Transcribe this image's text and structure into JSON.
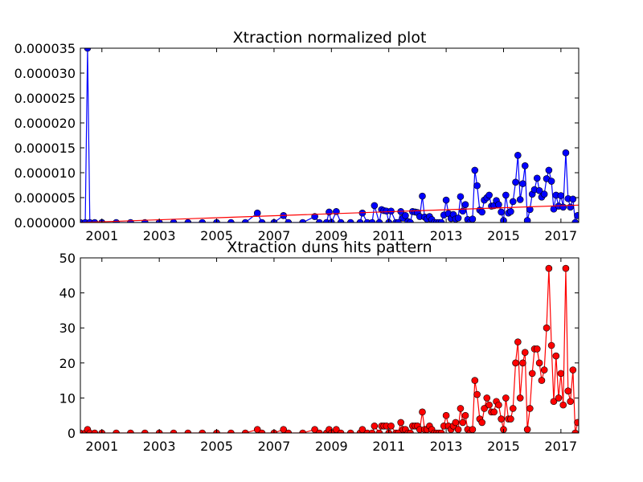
{
  "chart_data": [
    {
      "type": "line",
      "title": "Xtraction normalized plot",
      "xlabel": "",
      "ylabel": "",
      "xlim": [
        2000.25,
        2017.62
      ],
      "ylim": [
        0,
        3.5e-05
      ],
      "x_ticks": [
        2001,
        2003,
        2005,
        2007,
        2009,
        2011,
        2013,
        2015,
        2017
      ],
      "x_tick_labels": [
        "2001",
        "2003",
        "2005",
        "2007",
        "2009",
        "2011",
        "2013",
        "2015",
        "2017"
      ],
      "y_ticks": [
        0,
        5e-06,
        1e-05,
        1.5e-05,
        2e-05,
        2.5e-05,
        3e-05,
        3.5e-05
      ],
      "y_tick_labels": [
        "0.000000",
        "0.000005",
        "0.000010",
        "0.000015",
        "0.000020",
        "0.000025",
        "0.000030",
        "0.000035"
      ],
      "grid": false,
      "series": [
        {
          "style": "line-marker",
          "color": "#0000ff",
          "points": [
            [
              2000.25,
              0.0
            ],
            [
              2000.42,
              0.0
            ],
            [
              2000.5,
              3.5e-05
            ],
            [
              2000.58,
              0.0
            ],
            [
              2000.75,
              0.0
            ],
            [
              2001.0,
              0.0
            ],
            [
              2001.5,
              0.0
            ],
            [
              2002.0,
              0.0
            ],
            [
              2002.5,
              0.0
            ],
            [
              2003.0,
              0.0
            ],
            [
              2003.5,
              0.0
            ],
            [
              2004.0,
              0.0
            ],
            [
              2004.5,
              0.0
            ],
            [
              2005.0,
              0.0
            ],
            [
              2005.5,
              0.0
            ],
            [
              2006.0,
              0.0
            ],
            [
              2006.42,
              1.9e-06
            ],
            [
              2006.58,
              0.0
            ],
            [
              2007.0,
              0.0
            ],
            [
              2007.33,
              1.4e-06
            ],
            [
              2007.5,
              0.0
            ],
            [
              2008.0,
              0.0
            ],
            [
              2008.42,
              1.2e-06
            ],
            [
              2008.58,
              0.0
            ],
            [
              2008.83,
              0.0
            ],
            [
              2008.92,
              2.1e-06
            ],
            [
              2009.0,
              0.0
            ],
            [
              2009.17,
              2.2e-06
            ],
            [
              2009.33,
              0.0
            ],
            [
              2009.67,
              0.0
            ],
            [
              2010.0,
              0.0
            ],
            [
              2010.08,
              1.9e-06
            ],
            [
              2010.25,
              0.0
            ],
            [
              2010.42,
              0.0
            ],
            [
              2010.5,
              3.4e-06
            ],
            [
              2010.67,
              0.0
            ],
            [
              2010.75,
              2.6e-06
            ],
            [
              2010.83,
              2.4e-06
            ],
            [
              2010.92,
              2.3e-06
            ],
            [
              2011.0,
              0.0
            ],
            [
              2011.08,
              2.3e-06
            ],
            [
              2011.25,
              0.0
            ],
            [
              2011.33,
              0.0
            ],
            [
              2011.42,
              2.2e-06
            ],
            [
              2011.5,
              9e-07
            ],
            [
              2011.58,
              1.4e-06
            ],
            [
              2011.67,
              2e-07
            ],
            [
              2011.75,
              0.0
            ],
            [
              2011.83,
              2.2e-06
            ],
            [
              2011.92,
              2.1e-06
            ],
            [
              2012.0,
              2e-06
            ],
            [
              2012.08,
              1.2e-06
            ],
            [
              2012.17,
              5.3e-06
            ],
            [
              2012.25,
              1.1e-06
            ],
            [
              2012.33,
              7e-07
            ],
            [
              2012.42,
              1.2e-06
            ],
            [
              2012.5,
              6e-07
            ],
            [
              2012.58,
              0.0
            ],
            [
              2012.67,
              0.0
            ],
            [
              2012.75,
              0.0
            ],
            [
              2012.83,
              0.0
            ],
            [
              2012.92,
              1.5e-06
            ],
            [
              2013.0,
              4.5e-06
            ],
            [
              2013.08,
              1.8e-06
            ],
            [
              2013.17,
              8e-07
            ],
            [
              2013.25,
              1.6e-06
            ],
            [
              2013.33,
              7e-07
            ],
            [
              2013.42,
              9e-07
            ],
            [
              2013.5,
              5.2e-06
            ],
            [
              2013.58,
              2.3e-06
            ],
            [
              2013.67,
              3.6e-06
            ],
            [
              2013.75,
              6e-07
            ],
            [
              2013.83,
              0.0
            ],
            [
              2013.92,
              7e-07
            ],
            [
              2014.0,
              1.05e-05
            ],
            [
              2014.08,
              7.4e-06
            ],
            [
              2014.17,
              2.5e-06
            ],
            [
              2014.25,
              2.1e-06
            ],
            [
              2014.33,
              4.5e-06
            ],
            [
              2014.42,
              5e-06
            ],
            [
              2014.5,
              5.5e-06
            ],
            [
              2014.58,
              3.3e-06
            ],
            [
              2014.67,
              3.4e-06
            ],
            [
              2014.75,
              4.4e-06
            ],
            [
              2014.83,
              3.6e-06
            ],
            [
              2014.92,
              2.1e-06
            ],
            [
              2015.0,
              4e-07
            ],
            [
              2015.08,
              5.5e-06
            ],
            [
              2015.17,
              1.9e-06
            ],
            [
              2015.25,
              2.2e-06
            ],
            [
              2015.33,
              4.2e-06
            ],
            [
              2015.42,
              8.1e-06
            ],
            [
              2015.5,
              1.35e-05
            ],
            [
              2015.58,
              4.6e-06
            ],
            [
              2015.67,
              7.8e-06
            ],
            [
              2015.75,
              1.14e-05
            ],
            [
              2015.83,
              4e-07
            ],
            [
              2015.92,
              2.6e-06
            ],
            [
              2016.0,
              5.7e-06
            ],
            [
              2016.08,
              6.6e-06
            ],
            [
              2016.17,
              8.9e-06
            ],
            [
              2016.25,
              6.4e-06
            ],
            [
              2016.33,
              5.1e-06
            ],
            [
              2016.42,
              5.7e-06
            ],
            [
              2016.5,
              8.8e-06
            ],
            [
              2016.58,
              1.05e-05
            ],
            [
              2016.67,
              8.3e-06
            ],
            [
              2016.75,
              2.7e-06
            ],
            [
              2016.83,
              5.5e-06
            ],
            [
              2016.92,
              3.3e-06
            ],
            [
              2017.0,
              5.4e-06
            ],
            [
              2017.08,
              3.1e-06
            ],
            [
              2017.17,
              1.4e-05
            ],
            [
              2017.25,
              4.8e-06
            ],
            [
              2017.33,
              3.1e-06
            ],
            [
              2017.42,
              4.7e-06
            ],
            [
              2017.5,
              0.0
            ],
            [
              2017.58,
              1.4e-06
            ]
          ]
        },
        {
          "style": "line",
          "color": "#ff0000",
          "points": [
            [
              2000.25,
              0.0
            ],
            [
              2017.62,
              3.5e-06
            ]
          ]
        }
      ]
    },
    {
      "type": "line",
      "title": "Xtraction duns hits pattern",
      "xlabel": "",
      "ylabel": "",
      "xlim": [
        2000.25,
        2017.62
      ],
      "ylim": [
        0,
        50
      ],
      "x_ticks": [
        2001,
        2003,
        2005,
        2007,
        2009,
        2011,
        2013,
        2015,
        2017
      ],
      "x_tick_labels": [
        "2001",
        "2003",
        "2005",
        "2007",
        "2009",
        "2011",
        "2013",
        "2015",
        "2017"
      ],
      "y_ticks": [
        0,
        10,
        20,
        30,
        40,
        50
      ],
      "y_tick_labels": [
        "0",
        "10",
        "20",
        "30",
        "40",
        "50"
      ],
      "grid": false,
      "series": [
        {
          "style": "line-marker",
          "color": "#ff0000",
          "points": [
            [
              2000.25,
              0
            ],
            [
              2000.42,
              0
            ],
            [
              2000.5,
              1
            ],
            [
              2000.58,
              0
            ],
            [
              2000.75,
              0
            ],
            [
              2001.0,
              0
            ],
            [
              2001.5,
              0
            ],
            [
              2002.0,
              0
            ],
            [
              2002.5,
              0
            ],
            [
              2003.0,
              0
            ],
            [
              2003.5,
              0
            ],
            [
              2004.0,
              0
            ],
            [
              2004.5,
              0
            ],
            [
              2005.0,
              0
            ],
            [
              2005.5,
              0
            ],
            [
              2006.0,
              0
            ],
            [
              2006.42,
              1
            ],
            [
              2006.58,
              0
            ],
            [
              2007.0,
              0
            ],
            [
              2007.33,
              1
            ],
            [
              2007.5,
              0
            ],
            [
              2008.0,
              0
            ],
            [
              2008.42,
              1
            ],
            [
              2008.58,
              0
            ],
            [
              2008.83,
              0
            ],
            [
              2008.92,
              1
            ],
            [
              2009.0,
              0
            ],
            [
              2009.17,
              1
            ],
            [
              2009.33,
              0
            ],
            [
              2009.67,
              0
            ],
            [
              2010.0,
              0
            ],
            [
              2010.08,
              1
            ],
            [
              2010.25,
              0
            ],
            [
              2010.42,
              0
            ],
            [
              2010.5,
              2
            ],
            [
              2010.67,
              0
            ],
            [
              2010.75,
              2
            ],
            [
              2010.83,
              2
            ],
            [
              2010.92,
              2
            ],
            [
              2011.0,
              0
            ],
            [
              2011.08,
              2
            ],
            [
              2011.25,
              0
            ],
            [
              2011.33,
              0
            ],
            [
              2011.42,
              3
            ],
            [
              2011.5,
              1
            ],
            [
              2011.58,
              1
            ],
            [
              2011.67,
              0
            ],
            [
              2011.75,
              0
            ],
            [
              2011.83,
              2
            ],
            [
              2011.92,
              2
            ],
            [
              2012.0,
              2
            ],
            [
              2012.08,
              1
            ],
            [
              2012.17,
              6
            ],
            [
              2012.25,
              1
            ],
            [
              2012.33,
              1
            ],
            [
              2012.42,
              2
            ],
            [
              2012.5,
              1
            ],
            [
              2012.58,
              0
            ],
            [
              2012.67,
              0
            ],
            [
              2012.75,
              0
            ],
            [
              2012.83,
              0
            ],
            [
              2012.92,
              2
            ],
            [
              2013.0,
              5
            ],
            [
              2013.08,
              2
            ],
            [
              2013.17,
              1
            ],
            [
              2013.25,
              2
            ],
            [
              2013.33,
              3
            ],
            [
              2013.42,
              1
            ],
            [
              2013.5,
              7
            ],
            [
              2013.58,
              3
            ],
            [
              2013.67,
              5
            ],
            [
              2013.75,
              1
            ],
            [
              2013.83,
              0
            ],
            [
              2013.92,
              1
            ],
            [
              2014.0,
              15
            ],
            [
              2014.08,
              11
            ],
            [
              2014.17,
              4
            ],
            [
              2014.25,
              3
            ],
            [
              2014.33,
              7
            ],
            [
              2014.42,
              10
            ],
            [
              2014.5,
              8
            ],
            [
              2014.58,
              6
            ],
            [
              2014.67,
              6
            ],
            [
              2014.75,
              9
            ],
            [
              2014.83,
              8
            ],
            [
              2014.92,
              4
            ],
            [
              2015.0,
              1
            ],
            [
              2015.08,
              10
            ],
            [
              2015.17,
              4
            ],
            [
              2015.25,
              4
            ],
            [
              2015.33,
              7
            ],
            [
              2015.42,
              20
            ],
            [
              2015.5,
              26
            ],
            [
              2015.58,
              10
            ],
            [
              2015.67,
              20
            ],
            [
              2015.75,
              23
            ],
            [
              2015.83,
              1
            ],
            [
              2015.92,
              7
            ],
            [
              2016.0,
              17
            ],
            [
              2016.08,
              24
            ],
            [
              2016.17,
              24
            ],
            [
              2016.25,
              20
            ],
            [
              2016.33,
              15
            ],
            [
              2016.42,
              18
            ],
            [
              2016.5,
              30
            ],
            [
              2016.58,
              47
            ],
            [
              2016.67,
              25
            ],
            [
              2016.75,
              9
            ],
            [
              2016.83,
              22
            ],
            [
              2016.92,
              10
            ],
            [
              2017.0,
              17
            ],
            [
              2017.08,
              8
            ],
            [
              2017.17,
              47
            ],
            [
              2017.25,
              12
            ],
            [
              2017.33,
              9
            ],
            [
              2017.42,
              18
            ],
            [
              2017.5,
              0
            ],
            [
              2017.58,
              3
            ]
          ]
        }
      ]
    }
  ]
}
